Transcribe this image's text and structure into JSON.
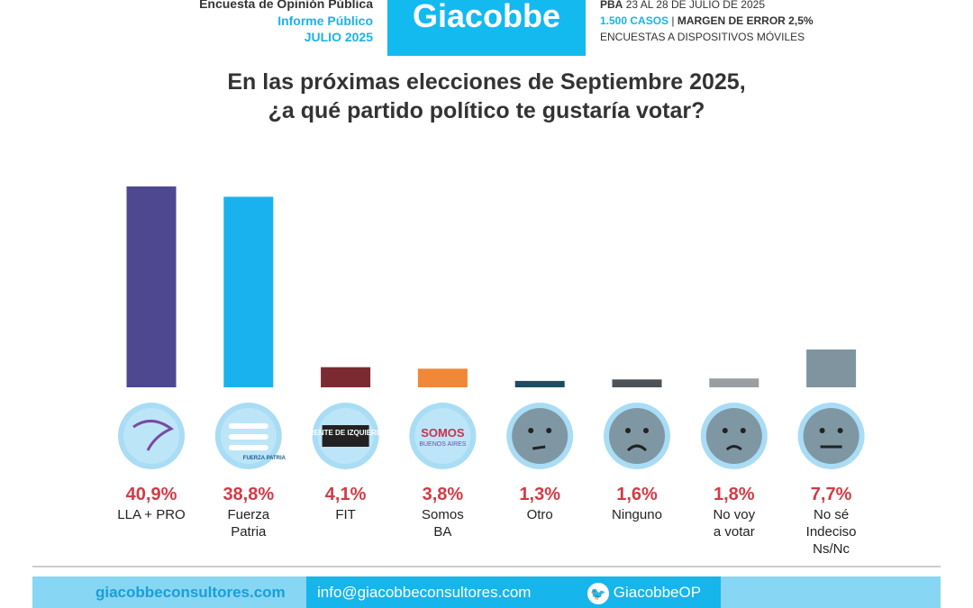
{
  "header": {
    "left_line1": "Encuesta de Opinión Pública",
    "left_line2": "Informe Público",
    "left_line3": "JULIO 2025",
    "logo": "Giacobbe",
    "right_line1_bold": "PBA",
    "right_line1": "23 AL 28 DE JULIO DE 2025",
    "right_line2_cases": "1.500 CASOS",
    "right_line2_margin": "MARGEN DE ERROR 2,5%",
    "right_line3": "ENCUESTAS A DISPOSITIVOS MÓVILES"
  },
  "chart_data": {
    "type": "bar",
    "title_line1": "En las próximas elecciones de Septiembre 2025,",
    "title_line2": "¿a qué partido político te gustaría votar?",
    "categories": [
      "LLA + PRO",
      "Fuerza\nPatria",
      "FIT",
      "Somos\nBA",
      "Otro",
      "Ninguno",
      "No voy\na votar",
      "No sé\nIndeciso\nNs/Nc"
    ],
    "values": [
      40.9,
      38.8,
      4.1,
      3.8,
      1.3,
      1.6,
      1.8,
      7.7
    ],
    "value_labels": [
      "40,9%",
      "38,8%",
      "4,1%",
      "3,8%",
      "1,3%",
      "1,6%",
      "1,8%",
      "7,7%"
    ],
    "colors": [
      "#4e4891",
      "#1ab2ee",
      "#7a2a30",
      "#f0883a",
      "#1d4c63",
      "#4b5258",
      "#9a9ea3",
      "#7f949e"
    ],
    "icons": [
      "lla-dove-logo-icon",
      "fuerza-patria-logo-icon",
      "frente-de-izquierda-logo-icon",
      "somos-buenos-aires-logo-icon",
      "thinking-face-icon",
      "angry-face-icon",
      "unamused-face-icon",
      "neutral-face-icon"
    ],
    "logo_texts": {
      "fit": "FRENTE DE IZQUIERDA",
      "somos": "SOMOS",
      "somos_sub": "BUENOS AIRES",
      "fp": "FUERZA PATRIA"
    },
    "ylim": [
      0,
      42
    ]
  },
  "footer": {
    "web": "giacobbeconsultores.com",
    "email": "info@giacobbeconsultores.com",
    "twitter": "GiacobbeOP"
  }
}
